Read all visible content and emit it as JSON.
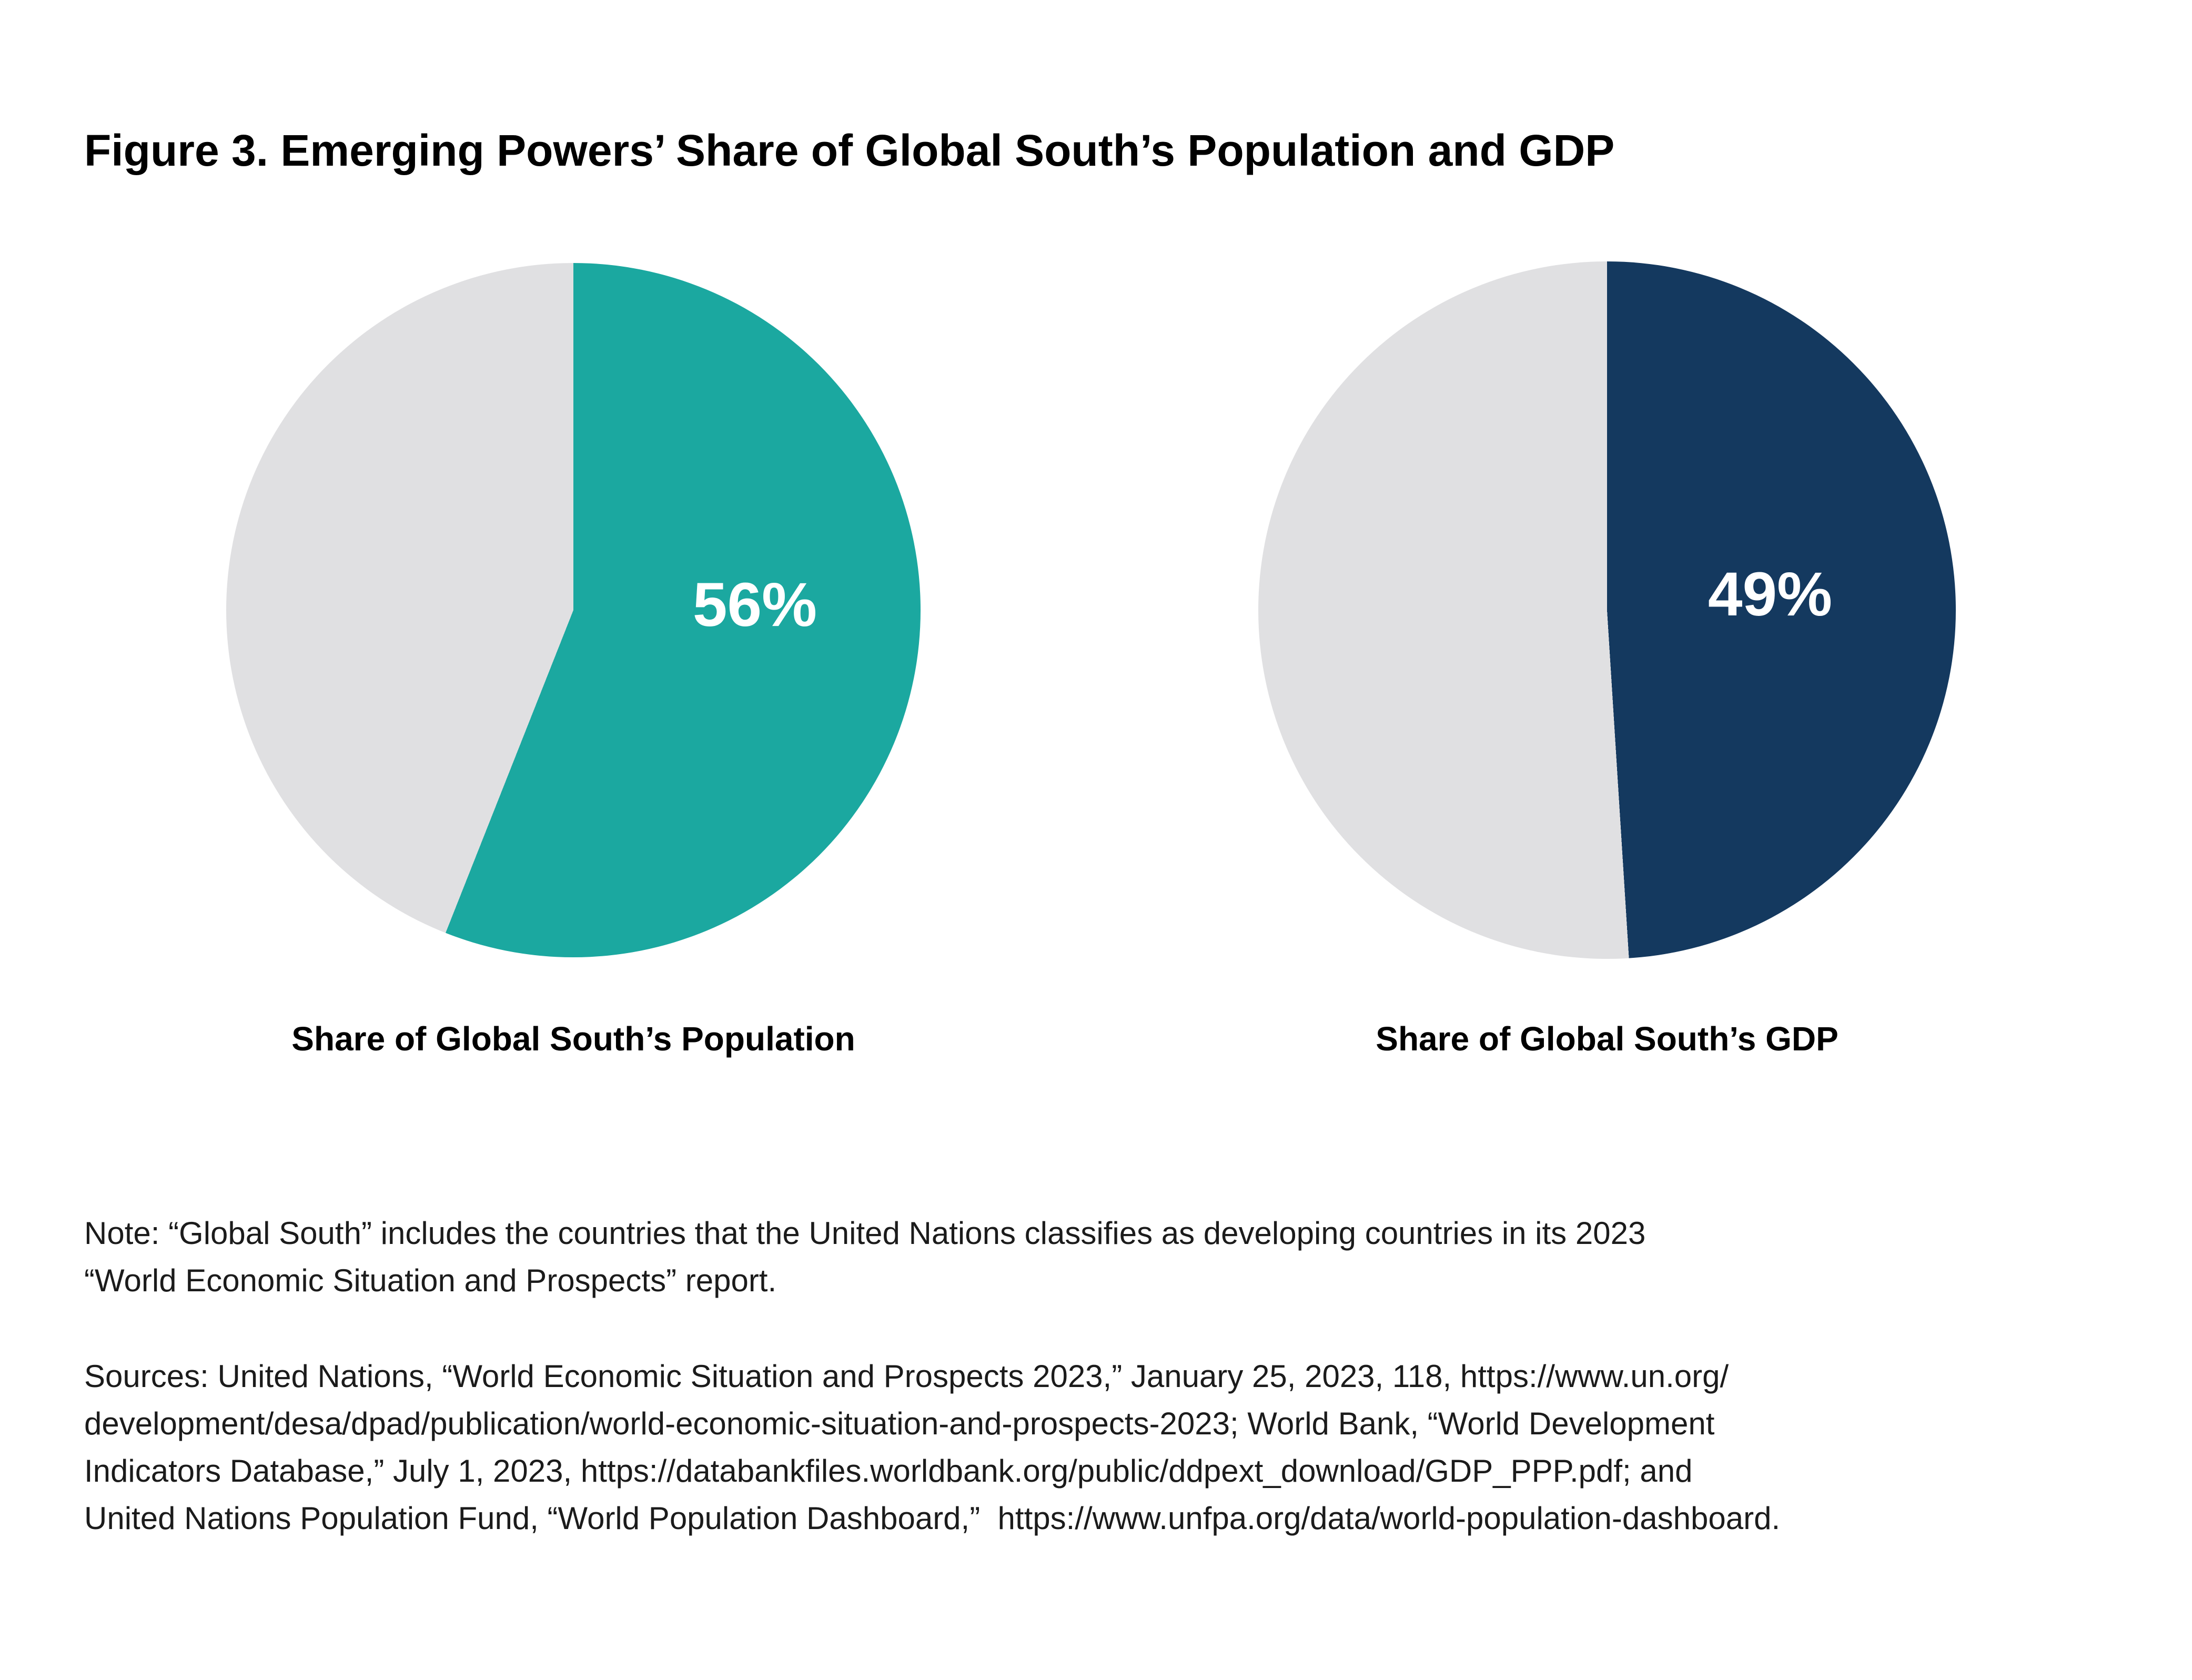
{
  "figure": {
    "title": "Figure 3. Emerging Powers’ Share of Global South’s Population and GDP"
  },
  "chart_data": [
    {
      "type": "pie",
      "caption": "Share of Global South’s Population",
      "value_pct": 56,
      "remainder_pct": 44,
      "data_label": "56%",
      "slice_color": "#1BA8A0",
      "remainder_color": "#E0E0E2",
      "start_angle_deg": 0,
      "direction": "clockwise",
      "data_label_color": "#FFFFFF"
    },
    {
      "type": "pie",
      "caption": "Share of Global South’s GDP",
      "value_pct": 49,
      "remainder_pct": 51,
      "data_label": "49%",
      "slice_color": "#14395F",
      "remainder_color": "#E0E0E2",
      "start_angle_deg": 0,
      "direction": "clockwise",
      "data_label_color": "#FFFFFF"
    }
  ],
  "note": {
    "lines": [
      "Note: “Global South” includes the countries that the United Nations classifies as developing countries in its 2023",
      "“World Economic Situation and Prospects” report."
    ]
  },
  "sources": {
    "lines": [
      "Sources: United Nations, “World Economic Situation and Prospects 2023,” January 25, 2023, 118, https://www.un.org/",
      "development/desa/dpad/publication/world-economic-situation-and-prospects-2023; World Bank, “World Development",
      "Indicators Database,” July 1, 2023, https://databankfiles.worldbank.org/public/ddpext_download/GDP_PPP.pdf; and",
      "United Nations Population Fund, “World Population Dashboard,”  https://www.unfpa.org/data/world-population-dashboard."
    ]
  }
}
